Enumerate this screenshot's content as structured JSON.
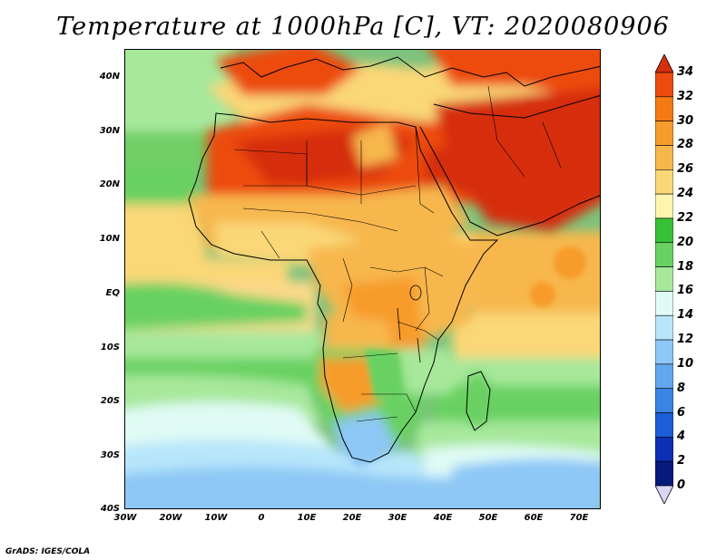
{
  "title": "Temperature at 1000hPa [C], VT: 2020080906",
  "credit": "GrADS: IGES/COLA",
  "map": {
    "y_ticks": [
      "40N",
      "30N",
      "20N",
      "10N",
      "EQ",
      "10S",
      "20S",
      "30S",
      "40S"
    ],
    "x_ticks": [
      "30W",
      "20W",
      "10W",
      "0",
      "10E",
      "20E",
      "30E",
      "40E",
      "50E",
      "60E",
      "70E"
    ]
  },
  "colorbar": {
    "labels": [
      "34",
      "32",
      "30",
      "28",
      "26",
      "24",
      "22",
      "20",
      "18",
      "16",
      "14",
      "12",
      "10",
      "8",
      "6",
      "4",
      "2",
      "0"
    ],
    "colors": [
      "#d62f0c",
      "#ec4b10",
      "#f47a14",
      "#f79b2c",
      "#f7b74d",
      "#fad777",
      "#fff5b0",
      "#37c138",
      "#69d162",
      "#a7e89b",
      "#e0fbf4",
      "#b7e6fb",
      "#8dc8f6",
      "#63a7ef",
      "#3a84e3",
      "#1d5ed6",
      "#0d2fb3",
      "#061a7c",
      "#dcd6f5"
    ]
  }
}
